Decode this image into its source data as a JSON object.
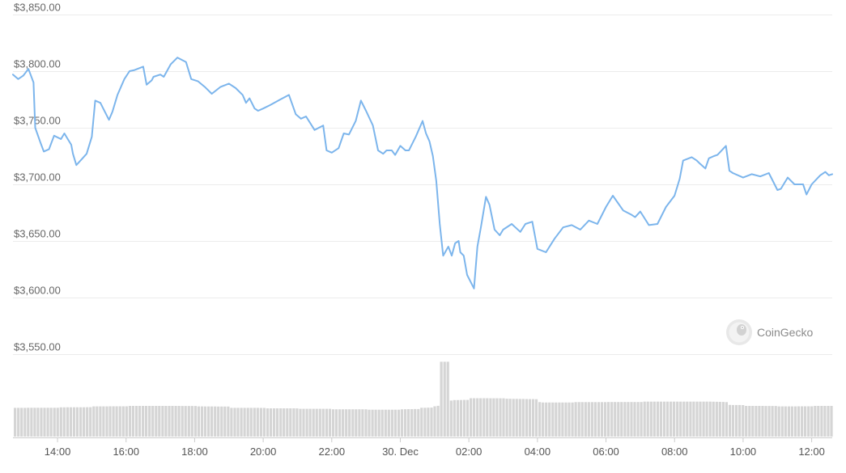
{
  "chart_data": {
    "type": "line",
    "title": "",
    "xlabel": "",
    "ylabel": "",
    "ylim": [
      3550,
      3850
    ],
    "grid": true,
    "y_ticks": [
      "$3,850.00",
      "$3,800.00",
      "$3,750.00",
      "$3,700.00",
      "$3,650.00",
      "$3,600.00",
      "$3,550.00"
    ],
    "y_tick_values": [
      3850,
      3800,
      3750,
      3700,
      3650,
      3600,
      3550
    ],
    "x_ticks": [
      "14:00",
      "16:00",
      "18:00",
      "20:00",
      "22:00",
      "30. Dec",
      "02:00",
      "04:00",
      "06:00",
      "08:00",
      "10:00",
      "12:00"
    ],
    "x_tick_hours": [
      14,
      16,
      18,
      20,
      22,
      24,
      26,
      28,
      30,
      32,
      34,
      36
    ],
    "x_range_hours": [
      12.7,
      36.6
    ],
    "series": [
      {
        "kind": "price",
        "color": "#7cb5ec",
        "x": [
          12.7,
          12.85,
          13.0,
          13.15,
          13.3,
          13.35,
          13.5,
          13.6,
          13.75,
          13.9,
          14.1,
          14.2,
          14.3,
          14.4,
          14.45,
          14.55,
          14.7,
          14.85,
          15.0,
          15.1,
          15.25,
          15.35,
          15.5,
          15.6,
          15.75,
          15.95,
          16.1,
          16.25,
          16.5,
          16.6,
          16.75,
          16.8,
          17.0,
          17.1,
          17.3,
          17.5,
          17.75,
          17.9,
          18.1,
          18.3,
          18.5,
          18.75,
          19.0,
          19.2,
          19.4,
          19.5,
          19.6,
          19.75,
          19.85,
          20.0,
          20.2,
          20.5,
          20.75,
          20.95,
          21.1,
          21.25,
          21.5,
          21.75,
          21.85,
          22.0,
          22.2,
          22.35,
          22.5,
          22.7,
          22.85,
          23.0,
          23.2,
          23.35,
          23.5,
          23.6,
          23.75,
          23.85,
          24.0,
          24.15,
          24.25,
          24.45,
          24.65,
          24.75,
          24.85,
          24.95,
          25.05,
          25.15,
          25.25,
          25.4,
          25.5,
          25.6,
          25.7,
          25.75,
          25.85,
          25.95,
          26.15,
          26.25,
          26.35,
          26.5,
          26.6,
          26.75,
          26.9,
          27.0,
          27.25,
          27.5,
          27.65,
          27.85,
          28.0,
          28.25,
          28.5,
          28.75,
          29.0,
          29.25,
          29.5,
          29.75,
          30.0,
          30.2,
          30.5,
          30.75,
          30.85,
          31.0,
          31.25,
          31.5,
          31.75,
          32.0,
          32.15,
          32.25,
          32.5,
          32.65,
          32.75,
          32.9,
          33.0,
          33.15,
          33.25,
          33.5,
          33.6,
          33.7,
          34.0,
          34.25,
          34.5,
          34.75,
          35.0,
          35.1,
          35.3,
          35.5,
          35.75,
          35.85,
          36.0,
          36.25,
          36.4,
          36.5,
          36.6
        ],
        "values": [
          3797,
          3793,
          3796,
          3802,
          3790,
          3750,
          3737,
          3729,
          3731,
          3743,
          3740,
          3745,
          3740,
          3735,
          3727,
          3717,
          3722,
          3727,
          3742,
          3774,
          3772,
          3766,
          3757,
          3764,
          3779,
          3793,
          3800,
          3801,
          3804,
          3788,
          3792,
          3795,
          3797,
          3795,
          3806,
          3812,
          3808,
          3793,
          3791,
          3786,
          3780,
          3786,
          3789,
          3785,
          3779,
          3772,
          3776,
          3767,
          3765,
          3767,
          3770,
          3775,
          3779,
          3762,
          3758,
          3760,
          3748,
          3752,
          3730,
          3728,
          3732,
          3745,
          3744,
          3756,
          3774,
          3765,
          3752,
          3730,
          3727,
          3730,
          3730,
          3726,
          3734,
          3730,
          3730,
          3742,
          3756,
          3745,
          3738,
          3725,
          3703,
          3665,
          3637,
          3645,
          3637,
          3648,
          3650,
          3640,
          3637,
          3620,
          3608,
          3645,
          3662,
          3689,
          3682,
          3660,
          3655,
          3660,
          3665,
          3658,
          3665,
          3667,
          3643,
          3640,
          3652,
          3662,
          3664,
          3660,
          3668,
          3665,
          3680,
          3690,
          3677,
          3673,
          3671,
          3676,
          3664,
          3665,
          3680,
          3690,
          3705,
          3721,
          3724,
          3721,
          3718,
          3714,
          3723,
          3725,
          3726,
          3734,
          3712,
          3710,
          3706,
          3709,
          3707,
          3710,
          3695,
          3696,
          3706,
          3700,
          3700,
          3691,
          3700,
          3708,
          3711,
          3708,
          3709
        ]
      },
      {
        "kind": "volume",
        "color": "#d5d5d5",
        "x": [
          12.7,
          14.0,
          15.0,
          16.0,
          17.0,
          18.0,
          19.0,
          20.0,
          21.0,
          22.0,
          23.0,
          24.0,
          24.5,
          24.9,
          25.0,
          25.1,
          25.2,
          25.3,
          25.35,
          25.4,
          25.5,
          26.0,
          27.0,
          28.0,
          28.1,
          29.0,
          30.0,
          31.0,
          32.0,
          33.0,
          33.5,
          34.0,
          35.0,
          36.0,
          36.6
        ],
        "values": [
          60,
          61,
          63,
          64,
          64,
          63,
          60,
          59,
          58,
          57,
          56,
          57,
          60,
          63,
          64,
          65,
          156,
          156,
          90,
          75,
          76,
          80,
          79,
          72,
          71,
          72,
          72,
          73,
          73,
          73,
          66,
          64,
          63,
          64,
          64
        ]
      }
    ]
  },
  "watermark": {
    "text": "CoinGecko"
  }
}
